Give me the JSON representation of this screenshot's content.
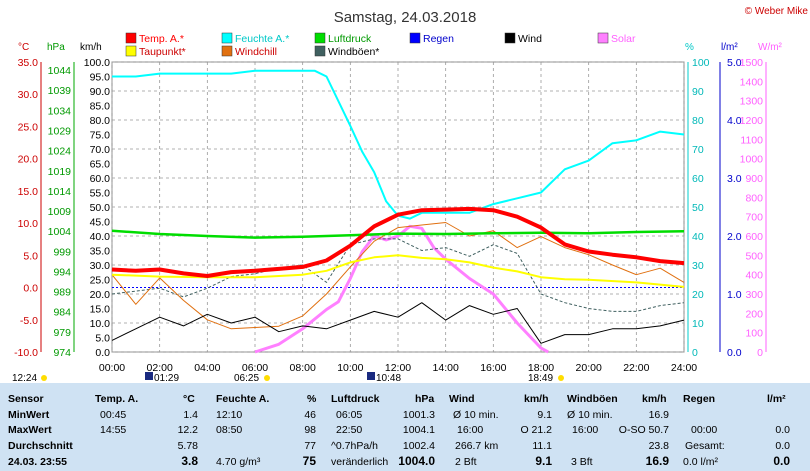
{
  "header": {
    "title": "Samstag, 24.03.2018",
    "credit": "© Weber Mike"
  },
  "colors": {
    "temp": "#ff0000",
    "humidity": "#00ffff",
    "pressure": "#00dd00",
    "rain": "#0000ff",
    "wind": "#000000",
    "solar": "#ff80ff",
    "dewpoint": "#ffff00",
    "windchill": "#e07010",
    "gust": "#406060"
  },
  "legend": [
    {
      "label": "Temp. A.*",
      "color": "#ff0000",
      "text_color": "#ff0000"
    },
    {
      "label": "Feuchte A.*",
      "color": "#00ffff",
      "text_color": "#00c8c8"
    },
    {
      "label": "Luftdruck",
      "color": "#00dd00",
      "text_color": "#009900"
    },
    {
      "label": "Regen",
      "color": "#0000ff",
      "text_color": "#0000cc"
    },
    {
      "label": "Wind",
      "color": "#000000",
      "text_color": "#000000"
    },
    {
      "label": "Solar",
      "color": "#ff80ff",
      "text_color": "#ff60ff"
    },
    {
      "label": "Taupunkt*",
      "color": "#ffff00",
      "text_color": "#cc0000"
    },
    {
      "label": "Windchill",
      "color": "#e07010",
      "text_color": "#cc0000"
    },
    {
      "label": "Windböen*",
      "color": "#406060",
      "text_color": "#000000"
    }
  ],
  "axis_units": {
    "temp": "°C",
    "pressure": "hPa",
    "speed": "km/h",
    "humidity": "%",
    "rain": "l/m²",
    "solar": "W/m²"
  },
  "chart_data": {
    "type": "line",
    "title": "Samstag, 24.03.2018",
    "x_range_hours": [
      0,
      24
    ],
    "x_ticks": [
      "00:00",
      "02:00",
      "04:00",
      "06:00",
      "08:00",
      "10:00",
      "12:00",
      "14:00",
      "16:00",
      "18:00",
      "20:00",
      "22:00",
      "24:00"
    ],
    "axes": {
      "temp_c": {
        "range": [
          -10,
          35
        ],
        "ticks": [
          "35.0",
          "30.0",
          "25.0",
          "20.0",
          "15.0",
          "10.0",
          "5.0",
          "0.0",
          "-5.0",
          "-10.0"
        ]
      },
      "pressure_hpa": {
        "range": [
          974,
          1046
        ],
        "ticks": [
          "1044",
          "1039",
          "1034",
          "1029",
          "1024",
          "1019",
          "1014",
          "1009",
          "1004",
          "999",
          "994",
          "989",
          "984",
          "979",
          "974"
        ]
      },
      "speed_kmh": {
        "range": [
          0,
          100
        ],
        "ticks": [
          "100.0",
          "95.0",
          "90.0",
          "85.0",
          "80.0",
          "75.0",
          "70.0",
          "65.0",
          "60.0",
          "55.0",
          "50.0",
          "45.0",
          "40.0",
          "35.0",
          "30.0",
          "25.0",
          "20.0",
          "15.0",
          "10.0",
          "5.0",
          "0.0"
        ]
      },
      "humidity_pct": {
        "range": [
          0,
          100
        ],
        "ticks": [
          "100",
          "90",
          "80",
          "70",
          "60",
          "50",
          "40",
          "30",
          "20",
          "10",
          "0"
        ]
      },
      "rain_lm2": {
        "range": [
          0,
          5
        ],
        "ticks": [
          "5.0",
          "4.0",
          "3.0",
          "2.0",
          "1.0",
          "0.0"
        ]
      },
      "solar_wm2": {
        "range": [
          0,
          1500
        ],
        "ticks": [
          "1500",
          "1400",
          "1300",
          "1200",
          "1100",
          "1000",
          "900",
          "800",
          "700",
          "600",
          "500",
          "400",
          "300",
          "200",
          "100",
          "0"
        ]
      }
    },
    "series": [
      {
        "name": "Temp. A.*",
        "axis": "temp_c",
        "x": [
          0,
          1,
          2,
          3,
          4,
          5,
          6,
          7,
          8,
          9,
          10,
          11,
          12,
          13,
          14,
          15,
          16,
          17,
          18,
          19,
          20,
          21,
          22,
          23,
          24
        ],
        "y": [
          2.8,
          2.6,
          2.8,
          2.2,
          1.8,
          2.4,
          2.6,
          2.9,
          3.2,
          4.2,
          6.5,
          9.5,
          11.3,
          12.0,
          12.1,
          12.2,
          12.0,
          11.0,
          9.3,
          6.7,
          5.6,
          5.1,
          4.7,
          4.1,
          3.8
        ]
      },
      {
        "name": "Feuchte A.*",
        "axis": "humidity_pct",
        "x": [
          0,
          1,
          2,
          3,
          4,
          5,
          6,
          7,
          8,
          8.5,
          9,
          10,
          10.5,
          11,
          11.5,
          12,
          12.5,
          13,
          14,
          15,
          16,
          17,
          18,
          19,
          20,
          21,
          22,
          23,
          24
        ],
        "y": [
          95,
          95,
          96,
          96,
          96,
          96,
          97,
          97,
          97,
          97,
          95,
          78,
          69,
          62,
          52,
          47,
          46,
          48,
          48,
          48,
          51,
          53,
          55,
          63,
          66,
          72,
          73,
          76,
          75
        ]
      },
      {
        "name": "Luftdruck",
        "axis": "pressure_hpa",
        "x": [
          0,
          2,
          4,
          6,
          8,
          10,
          12,
          14,
          16,
          18,
          20,
          22,
          24
        ],
        "y": [
          1004.1,
          1003.3,
          1002.8,
          1002.4,
          1002.6,
          1003.0,
          1003.4,
          1003.3,
          1003.5,
          1003.6,
          1003.5,
          1003.8,
          1004.0
        ]
      },
      {
        "name": "Taupunkt*",
        "axis": "temp_c",
        "x": [
          0,
          2,
          4,
          6,
          8,
          9,
          10,
          11,
          12,
          13,
          14,
          15,
          16,
          17,
          18,
          19,
          20,
          22,
          24
        ],
        "y": [
          2.0,
          1.7,
          1.6,
          1.6,
          2.0,
          2.6,
          3.9,
          4.7,
          5.0,
          4.6,
          4.4,
          3.9,
          3.1,
          2.5,
          1.6,
          1.3,
          1.2,
          0.8,
          0.1
        ]
      },
      {
        "name": "Windchill",
        "axis": "temp_c",
        "x": [
          0,
          1,
          2,
          3,
          4,
          5,
          6,
          7,
          8,
          9,
          10,
          11,
          12,
          13,
          14,
          15,
          16,
          17,
          18,
          19,
          20,
          21,
          22,
          23,
          24
        ],
        "y": [
          2.0,
          -2.6,
          1.5,
          -2.0,
          -5.0,
          -6.4,
          -6.2,
          -6.0,
          -4.4,
          -1.0,
          3.2,
          7.2,
          9.3,
          9.7,
          10.1,
          8.0,
          8.8,
          6.2,
          7.9,
          6.2,
          5.1,
          3.5,
          2.0,
          3.0,
          0.8
        ]
      },
      {
        "name": "Wind",
        "axis": "speed_kmh",
        "x": [
          0,
          1,
          2,
          3,
          4,
          5,
          6,
          7,
          8,
          9,
          10,
          11,
          12,
          13,
          14,
          15,
          16,
          17,
          18,
          19,
          20,
          21,
          22,
          23,
          24
        ],
        "y": [
          4,
          8,
          12,
          9,
          13,
          10,
          12,
          7,
          9,
          8,
          11,
          14,
          12,
          17,
          11,
          16,
          13,
          15,
          3,
          6,
          6,
          8,
          8,
          9,
          11
        ]
      },
      {
        "name": "Windböen*",
        "axis": "speed_kmh",
        "x": [
          0,
          1,
          2,
          3,
          4,
          5,
          6,
          7,
          8,
          9,
          10,
          11,
          12,
          13,
          14,
          15,
          16,
          17,
          18,
          19,
          20,
          21,
          22,
          23,
          24
        ],
        "y": [
          20,
          21,
          22,
          19,
          22,
          26,
          27,
          29,
          30,
          24,
          37,
          39,
          39,
          35,
          36,
          33,
          37,
          34,
          20,
          17,
          15,
          14,
          14,
          16,
          17
        ]
      },
      {
        "name": "Solar",
        "axis": "solar_wm2",
        "x": [
          6,
          7,
          8,
          9,
          9.5,
          10,
          10.5,
          11,
          11.5,
          12,
          12.5,
          13,
          13.5,
          14,
          15,
          16,
          17,
          18,
          18.3
        ],
        "y": [
          0,
          40,
          120,
          220,
          260,
          380,
          520,
          600,
          580,
          600,
          650,
          640,
          540,
          480,
          380,
          300,
          150,
          20,
          0
        ]
      }
    ]
  },
  "time_markers": {
    "left": "12:24",
    "sunrise": "06:25",
    "sunset": "18:49",
    "moon1": "01:29",
    "moon2": "10:48"
  },
  "table": {
    "headers": {
      "sensor": "Sensor",
      "temp": "Temp. A.",
      "temp_unit": "°C",
      "hum": "Feuchte A.",
      "hum_unit": "%",
      "press": "Luftdruck",
      "press_unit": "hPa",
      "wind": "Wind",
      "wind_unit": "km/h",
      "gust": "Windböen",
      "gust_unit": "km/h",
      "rain": "Regen",
      "rain_unit": "l/m²"
    },
    "row_labels": {
      "min": "MinWert",
      "max": "MaxWert",
      "avg": "Durchschnitt",
      "current": "24.03. 23:55"
    },
    "temp": {
      "min_time": "00:45",
      "min": "1.4",
      "max_time": "14:55",
      "max": "12.2",
      "avg": "5.78",
      "current": "3.8"
    },
    "hum": {
      "min_time": "12:10",
      "min": "46",
      "max_time": "08:50",
      "max": "98",
      "avg": "77",
      "current_extra": "4.70 g/m³",
      "current": "75"
    },
    "press": {
      "min_time": "06:05",
      "min": "1001.3",
      "max_time": "22:50",
      "max": "1004.1",
      "avg_label": "^0.7hPa/h",
      "avg": "1002.4",
      "trend": "veränderlich",
      "current": "1004.0"
    },
    "wind": {
      "r1_label": "Ø 10 min.",
      "r1": "9.1",
      "r2_time": "16:00",
      "r2": "O 21.2",
      "r3_label": "266.7 km",
      "r3": "11.1",
      "r4_label": "2 Bft",
      "current": "9.1"
    },
    "gust": {
      "r1_label": "Ø 10 min.",
      "r1": "16.9",
      "r2_time": "16:00",
      "r2": "O-SO 50.7",
      "r3": "23.8",
      "r4_label": "3 Bft",
      "current": "16.9"
    },
    "rain": {
      "r2_time": "00:00",
      "r2": "0.0",
      "r3_label": "Gesamt:",
      "r3": "0.0",
      "r4_label": "0.0 l/m²",
      "current": "0.0"
    }
  }
}
